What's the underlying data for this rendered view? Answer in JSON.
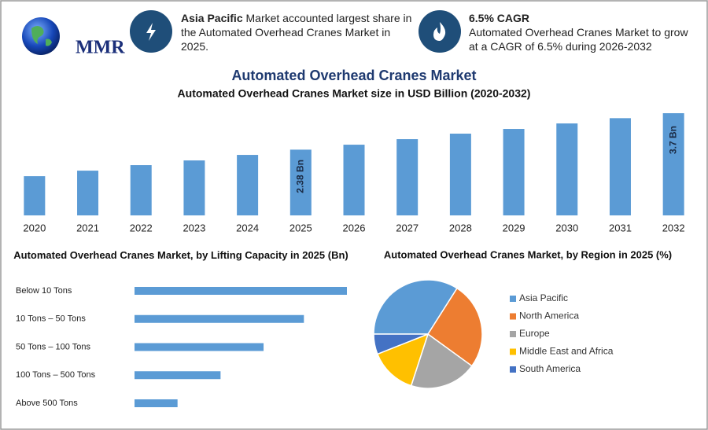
{
  "header": {
    "logo": "MMR",
    "highlights": [
      {
        "title": "Asia Pacific",
        "text": "Market accounted largest share in the Automated Overhead Cranes Market in 2025."
      },
      {
        "title": "6.5% CAGR",
        "text": "Automated Overhead Cranes Market to grow at a CAGR of 6.5% during 2026-2032"
      }
    ]
  },
  "title": "Automated Overhead Cranes Market",
  "chart_data": [
    {
      "type": "bar",
      "orientation": "vertical",
      "title": "Automated Overhead Cranes Market size in USD Billion (2020-2032)",
      "categories": [
        "2020",
        "2021",
        "2022",
        "2023",
        "2024",
        "2025",
        "2026",
        "2027",
        "2028",
        "2029",
        "2030",
        "2031",
        "2032"
      ],
      "values": [
        1.42,
        1.62,
        1.82,
        1.99,
        2.19,
        2.38,
        2.56,
        2.76,
        2.96,
        3.13,
        3.33,
        3.52,
        3.7
      ],
      "value_labels": [
        null,
        null,
        null,
        null,
        null,
        "2.38 Bn",
        null,
        null,
        null,
        null,
        null,
        null,
        "3.7 Bn"
      ],
      "color": "#5b9bd5"
    },
    {
      "type": "bar",
      "orientation": "horizontal",
      "title": "Automated Overhead Cranes Market, by Lifting Capacity in 2025 (Bn)",
      "categories": [
        "Below 10 Tons",
        "10 Tons – 50 Tons",
        "50 Tons – 100 Tons",
        "100 Tons – 500 Tons",
        "Above 500 Tons"
      ],
      "values": [
        0.79,
        0.63,
        0.48,
        0.32,
        0.16
      ],
      "color": "#5b9bd5"
    },
    {
      "type": "pie",
      "title": "Automated Overhead Cranes Market, by Region in 2025 (%)",
      "categories": [
        "Asia Pacific",
        "North America",
        "Europe",
        "Middle East and Africa",
        "South America"
      ],
      "values": [
        34,
        26,
        20,
        14,
        6
      ],
      "colors": [
        "#5b9bd5",
        "#ed7d31",
        "#a5a5a5",
        "#ffc000",
        "#4472c4"
      ]
    }
  ]
}
